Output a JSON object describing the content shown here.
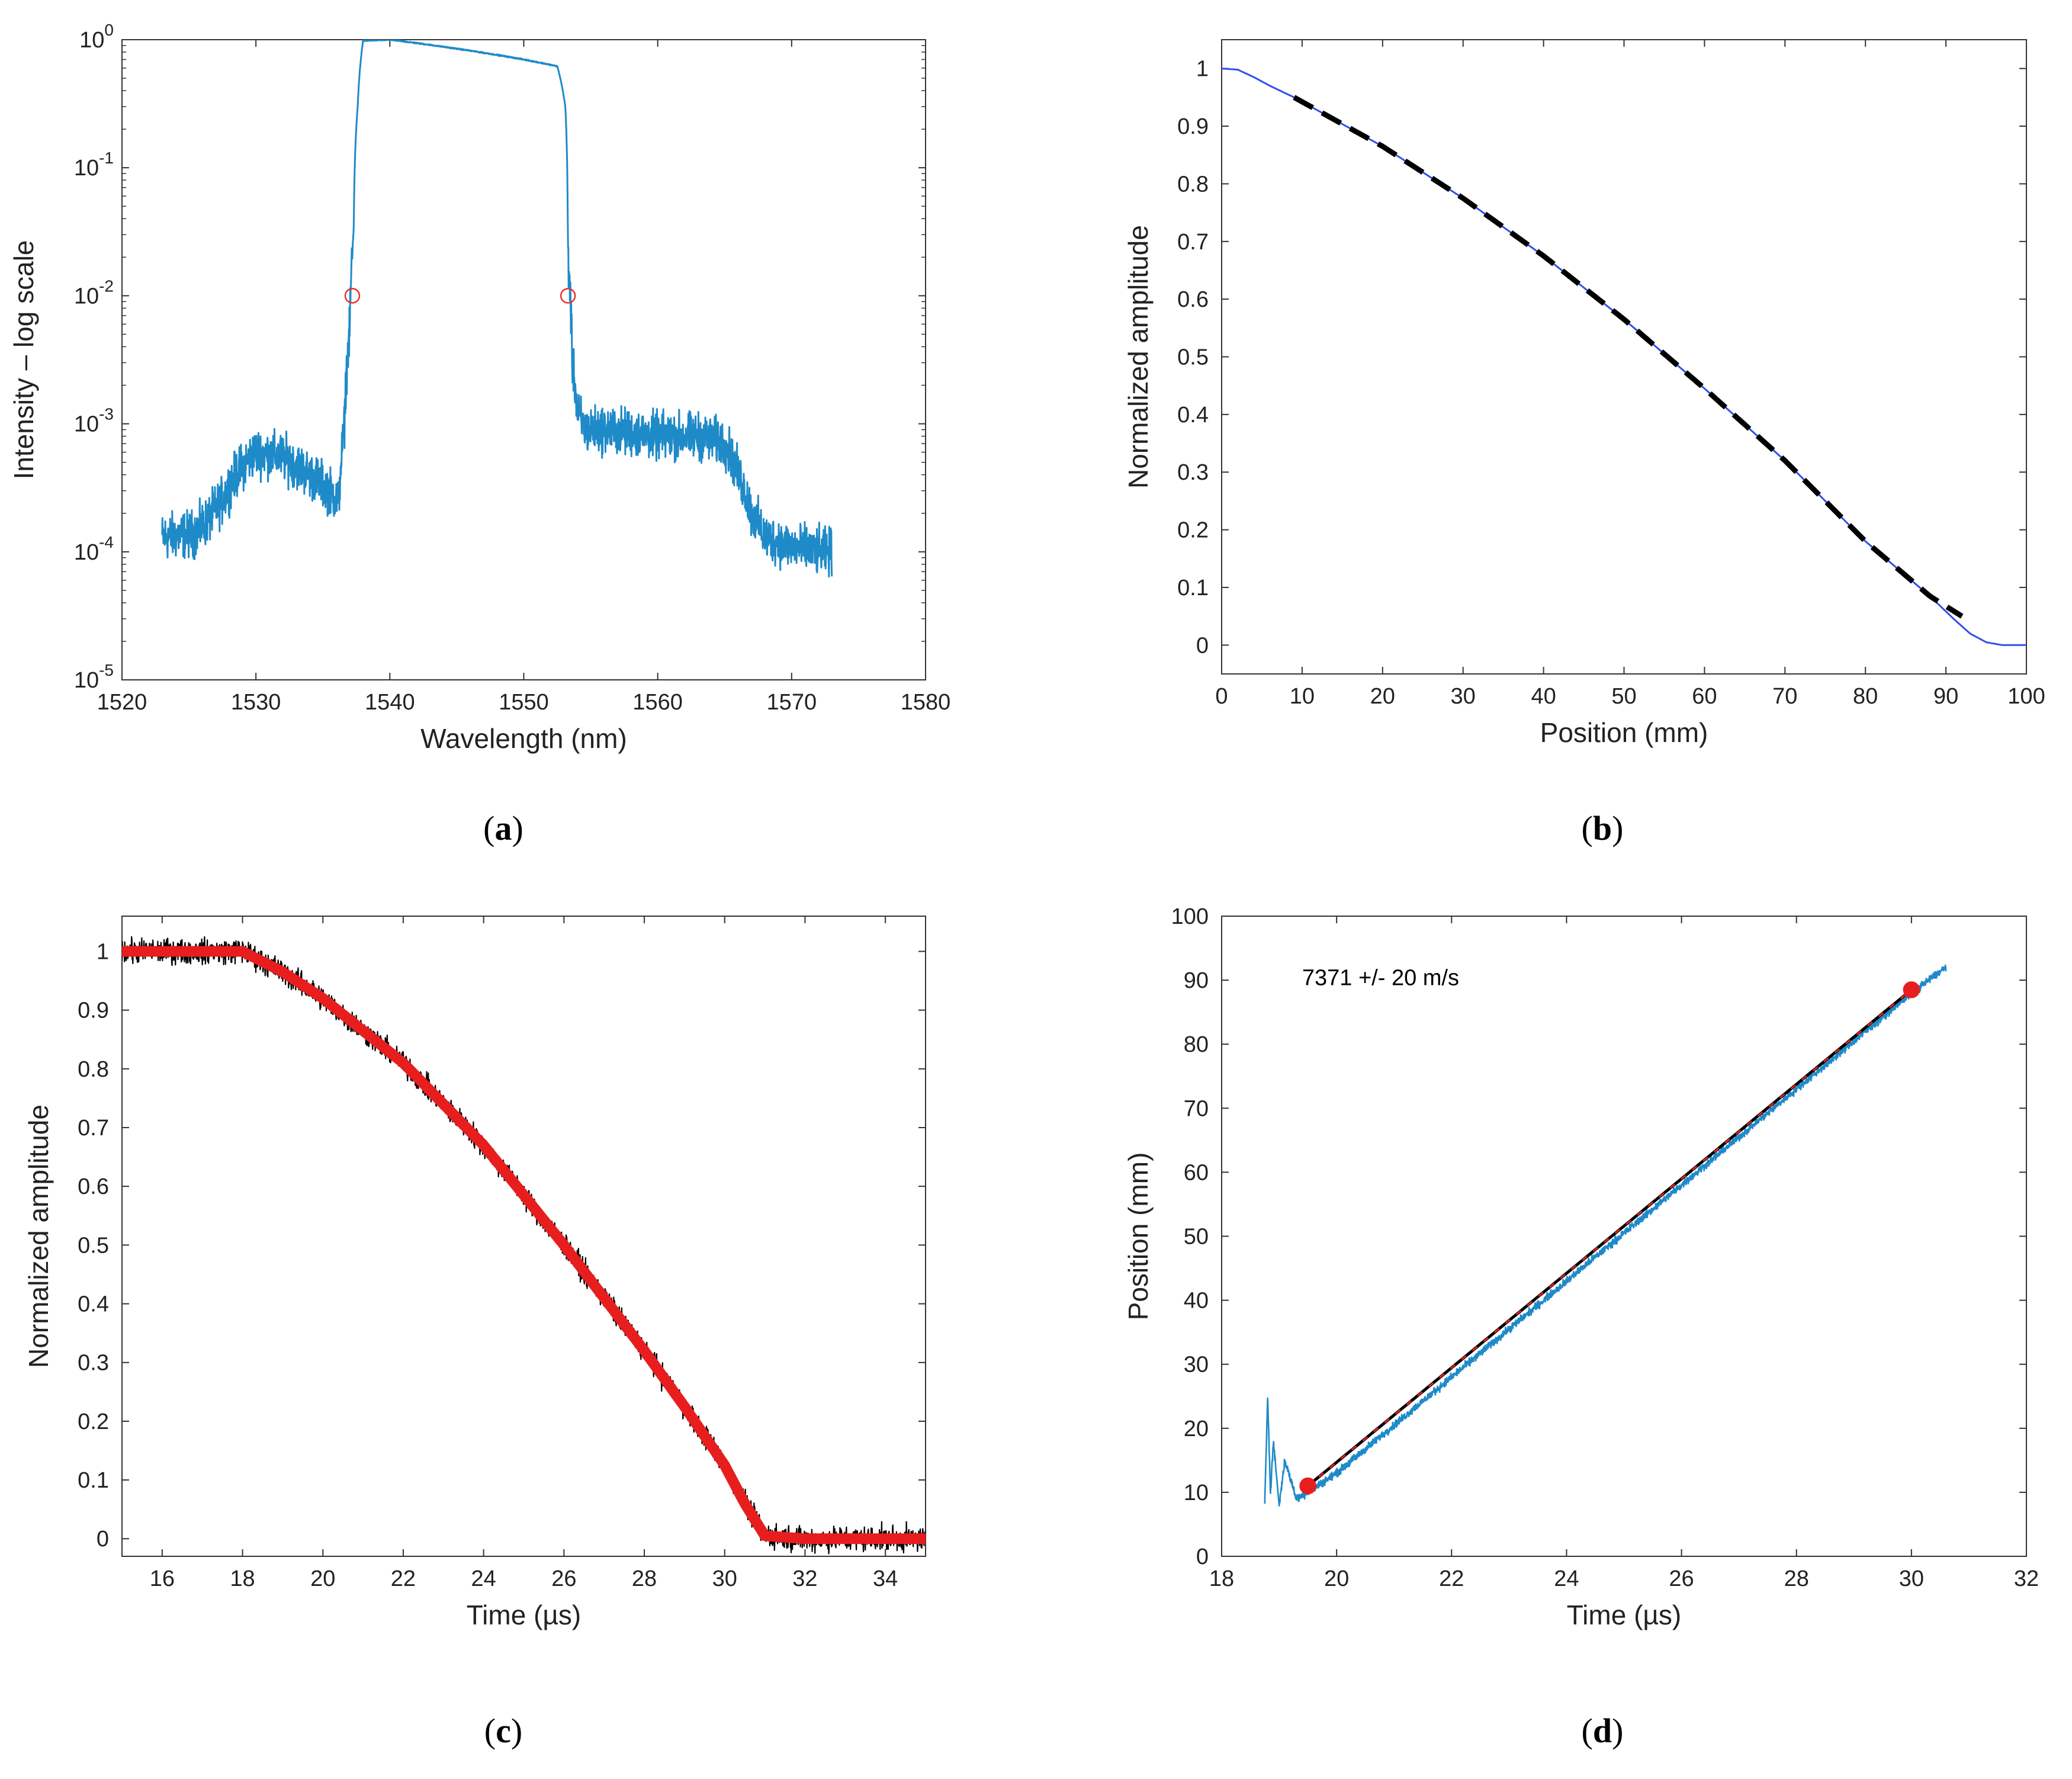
{
  "chart_data": [
    {
      "id": "a",
      "type": "line",
      "caption": "a",
      "xlabel": "Wavelength (nm)",
      "ylabel": "Intensity – log scale",
      "xlim": [
        1520,
        1580
      ],
      "ylim": [
        1e-05,
        1
      ],
      "yscale": "log",
      "xticks": [
        1520,
        1530,
        1540,
        1550,
        1560,
        1570,
        1580
      ],
      "yticks": [
        {
          "value": 1e-05,
          "base": "10",
          "exp": "-5"
        },
        {
          "value": 0.0001,
          "base": "10",
          "exp": "-4"
        },
        {
          "value": 0.001,
          "base": "10",
          "exp": "-3"
        },
        {
          "value": 0.01,
          "base": "10",
          "exp": "-2"
        },
        {
          "value": 0.1,
          "base": "10",
          "exp": "-1"
        },
        {
          "value": 1,
          "base": "10",
          "exp": "0"
        }
      ],
      "series": [
        {
          "color": "#1f8ac8",
          "noisy": true,
          "x": [
            1523,
            1524.5,
            1525.5,
            1526.5,
            1527.5,
            1528.5,
            1530,
            1532,
            1534,
            1535.5,
            1536.2,
            1536.6,
            1537.0,
            1537.3,
            1537.6,
            1538.0,
            1540,
            1545,
            1550,
            1552.5,
            1553.1,
            1553.3,
            1553.6,
            1554,
            1554.6,
            1556,
            1560,
            1563,
            1565,
            1566,
            1567,
            1568,
            1570,
            1572,
            1573
          ],
          "y": [
            0.00013,
            0.000135,
            0.00014,
            0.00018,
            0.00025,
            0.0004,
            0.0006,
            0.00055,
            0.0004,
            0.0003,
            0.00025,
            0.0009,
            0.005,
            0.03,
            0.3,
            0.98,
            1.0,
            0.85,
            0.7,
            0.62,
            0.3,
            0.02,
            0.003,
            0.0012,
            0.0009,
            0.0009,
            0.0008,
            0.0008,
            0.0007,
            0.0004,
            0.0002,
            0.00013,
            0.00011,
            0.0001,
            0.0001
          ]
        }
      ],
      "markers": [
        {
          "x": 1537.2,
          "y": 0.01,
          "color": "#e83030",
          "shape": "open-circle"
        },
        {
          "x": 1553.3,
          "y": 0.01,
          "color": "#e83030",
          "shape": "open-circle"
        }
      ]
    },
    {
      "id": "b",
      "type": "line",
      "caption": "b",
      "xlabel": "Position (mm)",
      "ylabel": "Normalized amplitude",
      "xlim": [
        0,
        100
      ],
      "ylim": [
        -0.05,
        1.05
      ],
      "xticks": [
        0,
        10,
        20,
        30,
        40,
        50,
        60,
        70,
        80,
        90,
        100
      ],
      "yticks": [
        0,
        0.1,
        0.2,
        0.3,
        0.4,
        0.5,
        0.6,
        0.7,
        0.8,
        0.9,
        1
      ],
      "series": [
        {
          "color": "#3050e8",
          "x": [
            0,
            2,
            4,
            6,
            9,
            20,
            30,
            40,
            50,
            60,
            70,
            80,
            88,
            91,
            93,
            95,
            97,
            100
          ],
          "y": [
            1.0,
            0.998,
            0.985,
            0.97,
            0.95,
            0.865,
            0.775,
            0.675,
            0.565,
            0.445,
            0.32,
            0.18,
            0.085,
            0.045,
            0.02,
            0.005,
            0.0,
            0.0
          ]
        },
        {
          "color": "#000000",
          "dashed": true,
          "x": [
            9,
            20,
            30,
            40,
            50,
            60,
            70,
            80,
            88,
            92
          ],
          "y": [
            0.95,
            0.865,
            0.775,
            0.675,
            0.565,
            0.445,
            0.32,
            0.18,
            0.085,
            0.05
          ]
        }
      ]
    },
    {
      "id": "c",
      "type": "line",
      "caption": "c",
      "xlabel": "Time (µs)",
      "ylabel": "Normalized amplitude",
      "xlim": [
        15,
        35
      ],
      "ylim": [
        -0.03,
        1.06
      ],
      "xticks": [
        16,
        18,
        20,
        22,
        24,
        26,
        28,
        30,
        32,
        34
      ],
      "yticks": [
        0,
        0.1,
        0.2,
        0.3,
        0.4,
        0.5,
        0.6,
        0.7,
        0.8,
        0.9,
        1
      ],
      "series": [
        {
          "color": "#000000",
          "noisy": true,
          "x": [
            15,
            16,
            17,
            18,
            19,
            20,
            22,
            24,
            26,
            28,
            29,
            30,
            30.5,
            31,
            32,
            33,
            34,
            35
          ],
          "y": [
            1.0,
            1.0,
            1.0,
            1.0,
            0.965,
            0.92,
            0.81,
            0.67,
            0.5,
            0.32,
            0.225,
            0.125,
            0.06,
            0.005,
            0.0,
            0.0,
            0.0,
            0.0
          ]
        },
        {
          "color": "#e81e1e",
          "x": [
            15,
            16,
            17,
            18,
            19,
            20,
            22,
            24,
            26,
            28,
            29,
            30,
            30.5,
            31,
            32,
            33,
            34,
            35
          ],
          "y": [
            1.0,
            1.0,
            1.0,
            1.0,
            0.965,
            0.92,
            0.81,
            0.67,
            0.5,
            0.32,
            0.225,
            0.125,
            0.06,
            0.005,
            0.0,
            0.0,
            0.0,
            0.0
          ]
        }
      ]
    },
    {
      "id": "d",
      "type": "line",
      "caption": "d",
      "xlabel": "Time  (µs)",
      "ylabel": "Position (mm)",
      "xlim": [
        18,
        32
      ],
      "ylim": [
        0,
        100
      ],
      "xticks": [
        18,
        20,
        22,
        24,
        26,
        28,
        30,
        32
      ],
      "yticks": [
        0,
        10,
        20,
        30,
        40,
        50,
        60,
        70,
        80,
        90,
        100
      ],
      "annotation": "7371 +/- 20 m/s",
      "series": [
        {
          "color": "#1f8ac8",
          "noisy": true,
          "x": [
            18.75,
            18.8,
            18.85,
            18.9,
            19.0,
            19.1,
            19.3,
            19.5,
            20,
            22,
            24,
            26,
            28,
            30,
            30.6
          ],
          "y": [
            8,
            25,
            10,
            18,
            8,
            15,
            9,
            10,
            13,
            28,
            43,
            58,
            73,
            88,
            92
          ]
        },
        {
          "color": "#000000",
          "x": [
            19.5,
            30
          ],
          "y": [
            11,
            88.5
          ]
        },
        {
          "color": "#e81e1e",
          "dashed": true,
          "x": [
            19.5,
            30
          ],
          "y": [
            11,
            88.5
          ]
        }
      ],
      "markers": [
        {
          "x": 19.5,
          "y": 11,
          "color": "#e81e1e",
          "shape": "filled-circle"
        },
        {
          "x": 30.0,
          "y": 88.5,
          "color": "#e81e1e",
          "shape": "filled-circle"
        }
      ]
    }
  ]
}
